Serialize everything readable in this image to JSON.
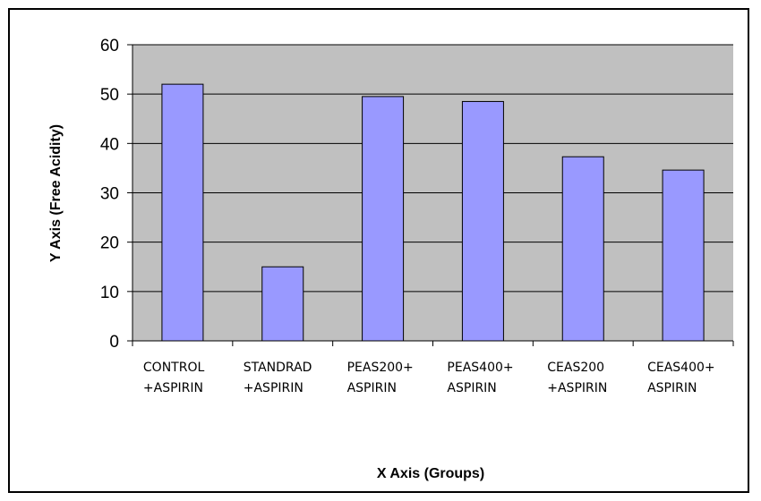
{
  "chart_data": {
    "type": "bar",
    "title": "",
    "xlabel": "X Axis (Groups)",
    "ylabel": "Y Axis (Free Acidity)",
    "ylim": [
      0,
      60
    ],
    "yticks": [
      "0",
      "10",
      "20",
      "30",
      "40",
      "50",
      "60"
    ],
    "grid": true,
    "legend": "none",
    "categories": [
      [
        "CONTROL",
        "+ASPIRIN"
      ],
      [
        "STANDRAD",
        "+ASPIRIN"
      ],
      [
        "PEAS200+",
        "ASPIRIN"
      ],
      [
        "PEAS400+",
        "ASPIRIN"
      ],
      [
        "CEAS200",
        "+ASPIRIN"
      ],
      [
        "CEAS400+",
        "ASPIRIN"
      ]
    ],
    "series": [
      {
        "values": [
          52,
          15,
          49.5,
          48.5,
          37.3,
          34.6
        ]
      }
    ],
    "colors": {
      "bar_fill": "#9999ff",
      "bar_stroke": "#000000",
      "plot_bg": "#c0c0c0",
      "gridline": "#000000"
    }
  }
}
